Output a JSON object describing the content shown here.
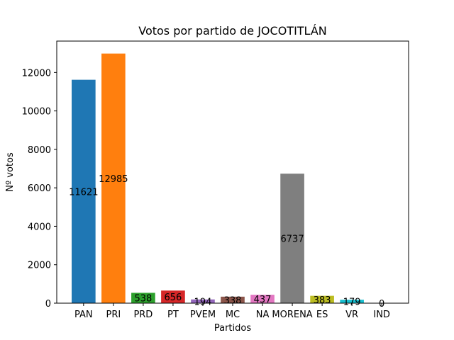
{
  "chart_data": {
    "type": "bar",
    "title": "Votos por partido de JOCOTITLÁN",
    "xlabel": "Partidos",
    "ylabel": "Nº votos",
    "categories": [
      "PAN",
      "PRI",
      "PRD",
      "PT",
      "PVEM",
      "MC",
      "NA",
      "MORENA",
      "ES",
      "VR",
      "IND"
    ],
    "values": [
      11621,
      12985,
      538,
      656,
      194,
      338,
      437,
      6737,
      383,
      179,
      0
    ],
    "colors": [
      "#1f77b4",
      "#ff7f0e",
      "#2ca02c",
      "#d62728",
      "#9467bd",
      "#8c564b",
      "#e377c2",
      "#7f7f7f",
      "#bcbd22",
      "#17becf",
      "#1f77b4"
    ],
    "yticks": [
      0,
      2000,
      4000,
      6000,
      8000,
      10000,
      12000
    ],
    "ylim": [
      0,
      13634
    ],
    "grid": false,
    "legend": "none"
  }
}
